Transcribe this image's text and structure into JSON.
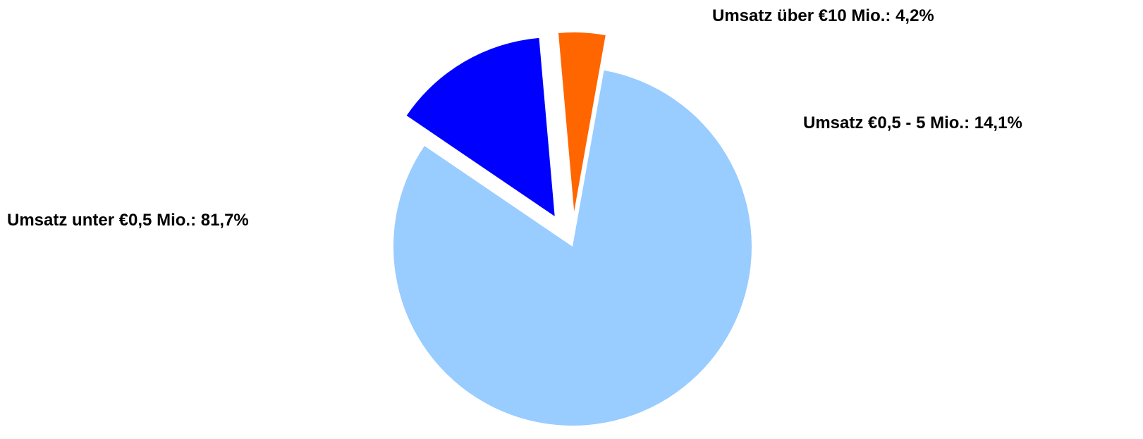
{
  "chart_data": {
    "type": "pie",
    "title": "",
    "slices": [
      {
        "label": "Umsatz unter €0,5 Mio.: 81,7%",
        "value": 81.7,
        "color": "#99ccff",
        "exploded": false
      },
      {
        "label": "Umsatz €0,5 - 5 Mio.: 14,1%",
        "value": 14.1,
        "color": "#0000ff",
        "exploded": true
      },
      {
        "label": "Umsatz über €10 Mio.: 4,2%",
        "value": 4.2,
        "color": "#ff6600",
        "exploded": true
      }
    ],
    "legend": "none"
  }
}
